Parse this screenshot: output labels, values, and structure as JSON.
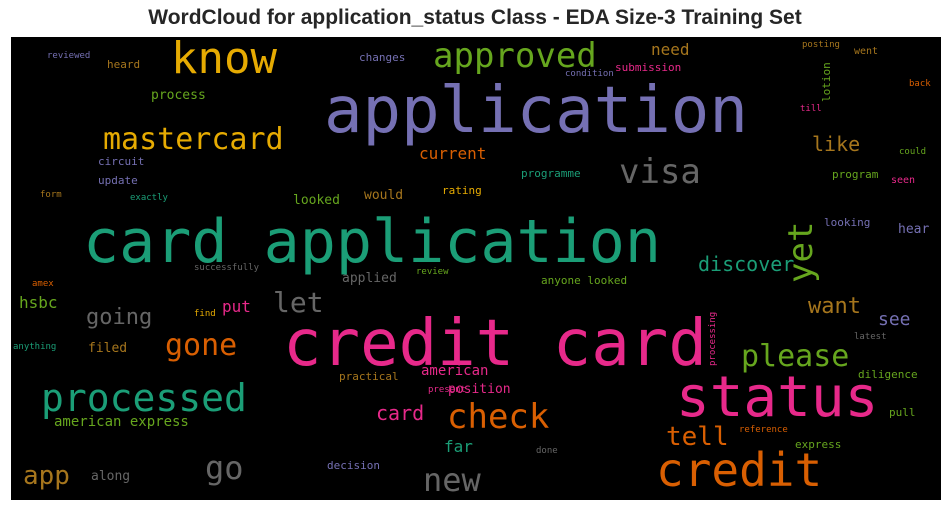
{
  "title": "WordCloud for application_status Class - EDA Size-3 Training Set",
  "palette": {
    "teal": "#1b9e77",
    "orange": "#d95f02",
    "purple": "#7570b3",
    "magenta": "#e7298a",
    "green": "#66a61e",
    "gold": "#e6ab02",
    "brown": "#a6761d",
    "gray": "#666666"
  },
  "words": [
    {
      "text": "credit card",
      "color": "magenta",
      "size": 64
    },
    {
      "text": "card application",
      "color": "teal",
      "size": 60
    },
    {
      "text": "application",
      "color": "purple",
      "size": 64
    },
    {
      "text": "status",
      "color": "magenta",
      "size": 56
    },
    {
      "text": "credit",
      "color": "orange",
      "size": 46
    },
    {
      "text": "know",
      "color": "gold",
      "size": 44
    },
    {
      "text": "processed",
      "color": "teal",
      "size": 38
    },
    {
      "text": "approved",
      "color": "green",
      "size": 34
    },
    {
      "text": "mastercard",
      "color": "gold",
      "size": 30
    },
    {
      "text": "check",
      "color": "orange",
      "size": 34
    },
    {
      "text": "visa",
      "color": "gray",
      "size": 34
    },
    {
      "text": "yet",
      "color": "green",
      "size": 34
    },
    {
      "text": "gone",
      "color": "orange",
      "size": 30
    },
    {
      "text": "please",
      "color": "green",
      "size": 30
    },
    {
      "text": "go",
      "color": "gray",
      "size": 32
    },
    {
      "text": "new",
      "color": "gray",
      "size": 32
    },
    {
      "text": "let",
      "color": "gray",
      "size": 28
    },
    {
      "text": "tell",
      "color": "orange",
      "size": 26
    },
    {
      "text": "app",
      "color": "brown",
      "size": 26
    },
    {
      "text": "going",
      "color": "gray",
      "size": 22
    },
    {
      "text": "want",
      "color": "brown",
      "size": 22
    },
    {
      "text": "like",
      "color": "brown",
      "size": 20
    },
    {
      "text": "discover",
      "color": "teal",
      "size": 20
    },
    {
      "text": "card",
      "color": "magenta",
      "size": 20
    },
    {
      "text": "see",
      "color": "purple",
      "size": 18
    },
    {
      "text": "current",
      "color": "orange",
      "size": 16
    },
    {
      "text": "hsbc",
      "color": "green",
      "size": 16
    },
    {
      "text": "put",
      "color": "magenta",
      "size": 16
    },
    {
      "text": "need",
      "color": "brown",
      "size": 16
    },
    {
      "text": "far",
      "color": "teal",
      "size": 16
    },
    {
      "text": "american",
      "color": "magenta",
      "size": 14
    },
    {
      "text": "american express",
      "color": "green",
      "size": 14
    },
    {
      "text": "process",
      "color": "green",
      "size": 13
    },
    {
      "text": "looked",
      "color": "green",
      "size": 13
    },
    {
      "text": "would",
      "color": "brown",
      "size": 13
    },
    {
      "text": "filed",
      "color": "brown",
      "size": 13
    },
    {
      "text": "applied",
      "color": "gray",
      "size": 13
    },
    {
      "text": "along",
      "color": "gray",
      "size": 13
    },
    {
      "text": "position",
      "color": "magenta",
      "size": 13
    },
    {
      "text": "hear",
      "color": "purple",
      "size": 13
    },
    {
      "text": "anyone looked",
      "color": "green",
      "size": 11
    },
    {
      "text": "update",
      "color": "purple",
      "size": 11
    },
    {
      "text": "circuit",
      "color": "purple",
      "size": 11
    },
    {
      "text": "changes",
      "color": "purple",
      "size": 11
    },
    {
      "text": "submission",
      "color": "magenta",
      "size": 11
    },
    {
      "text": "heard",
      "color": "brown",
      "size": 11
    },
    {
      "text": "rating",
      "color": "gold",
      "size": 11
    },
    {
      "text": "programme",
      "color": "teal",
      "size": 11
    },
    {
      "text": "program",
      "color": "green",
      "size": 11
    },
    {
      "text": "looking",
      "color": "purple",
      "size": 11
    },
    {
      "text": "diligence",
      "color": "green",
      "size": 11
    },
    {
      "text": "pull",
      "color": "green",
      "size": 11
    },
    {
      "text": "express",
      "color": "green",
      "size": 11
    },
    {
      "text": "decision",
      "color": "purple",
      "size": 11
    },
    {
      "text": "practical",
      "color": "brown",
      "size": 11
    },
    {
      "text": "lotion",
      "color": "green",
      "size": 11
    },
    {
      "text": "processing",
      "color": "magenta",
      "size": 9
    },
    {
      "text": "went",
      "color": "brown",
      "size": 10
    },
    {
      "text": "seen",
      "color": "magenta",
      "size": 10
    },
    {
      "text": "reviewed",
      "color": "purple",
      "size": 9
    },
    {
      "text": "posting",
      "color": "brown",
      "size": 9
    },
    {
      "text": "condition",
      "color": "purple",
      "size": 9
    },
    {
      "text": "back",
      "color": "orange",
      "size": 9
    },
    {
      "text": "till",
      "color": "magenta",
      "size": 9
    },
    {
      "text": "could",
      "color": "green",
      "size": 9
    },
    {
      "text": "exactly",
      "color": "teal",
      "size": 9
    },
    {
      "text": "form",
      "color": "brown",
      "size": 9
    },
    {
      "text": "successfully",
      "color": "gray",
      "size": 9
    },
    {
      "text": "review",
      "color": "green",
      "size": 9
    },
    {
      "text": "amex",
      "color": "orange",
      "size": 9
    },
    {
      "text": "find",
      "color": "gold",
      "size": 9
    },
    {
      "text": "anything",
      "color": "teal",
      "size": 9
    },
    {
      "text": "latest",
      "color": "gray",
      "size": 9
    },
    {
      "text": "present",
      "color": "magenta",
      "size": 9
    },
    {
      "text": "reference",
      "color": "orange",
      "size": 9
    },
    {
      "text": "done",
      "color": "gray",
      "size": 9
    }
  ]
}
